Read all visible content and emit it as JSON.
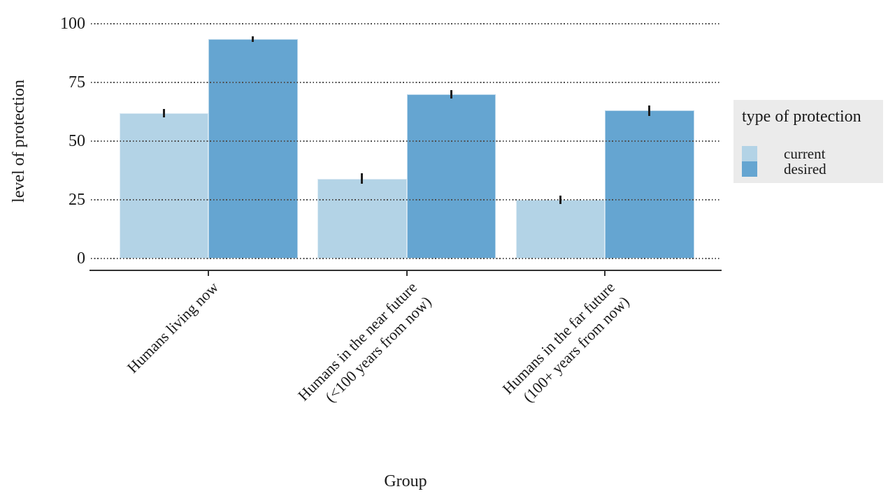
{
  "chart_data": {
    "type": "bar",
    "title": "",
    "xlabel": "Group",
    "ylabel": "level of protection",
    "categories": [
      [
        "Humans living now"
      ],
      [
        "Humans in the near future",
        "(<100 years from now)"
      ],
      [
        "Humans in the far future",
        "(100+ years from now)"
      ]
    ],
    "yticks": [
      0,
      25,
      50,
      75,
      100
    ],
    "ylim": [
      0,
      100
    ],
    "grid": "horizontal dotted gridlines drawn over bars",
    "legend_position": "right",
    "legend_title": "type of protection",
    "series": [
      {
        "name": "current",
        "color": "#b3d3e6",
        "values": [
          62,
          34,
          25
        ],
        "error_plus": [
          1.8,
          2.2,
          1.9
        ],
        "error_minus": [
          1.8,
          2.2,
          1.9
        ]
      },
      {
        "name": "desired",
        "color": "#65a5d1",
        "values": [
          93.5,
          70,
          63
        ],
        "error_plus": [
          1.2,
          1.8,
          2.3
        ],
        "error_minus": [
          1.2,
          1.8,
          2.3
        ]
      }
    ]
  },
  "colors": {
    "text": "#1a1a1a",
    "axis": "#333333",
    "grid_dot": "#4d4d4d",
    "legend_background": "#ebebeb",
    "panel_background": "#ffffff"
  }
}
